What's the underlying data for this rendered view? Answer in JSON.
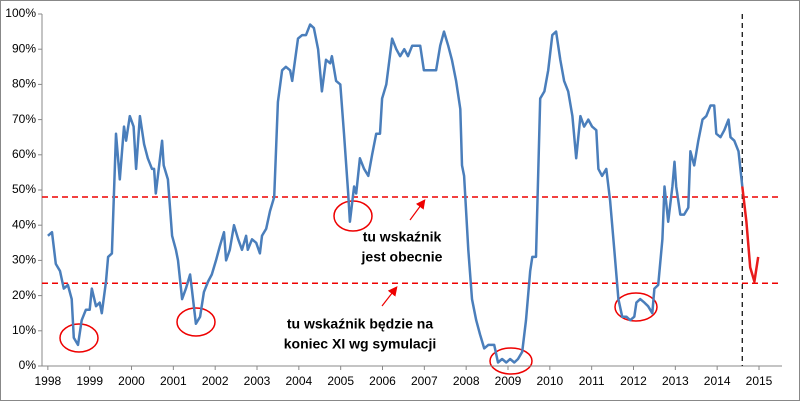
{
  "chart_data": {
    "type": "line",
    "xlim": [
      1997.86,
      2015.55
    ],
    "xticks": [
      1998,
      1999,
      2000,
      2001,
      2002,
      2003,
      2004,
      2005,
      2006,
      2007,
      2008,
      2009,
      2010,
      2011,
      2012,
      2013,
      2014,
      2015
    ],
    "ylim": [
      0,
      100
    ],
    "yticks": [
      {
        "value": 0,
        "label": "0%"
      },
      {
        "value": 10,
        "label": "10%"
      },
      {
        "value": 20,
        "label": "20%"
      },
      {
        "value": 30,
        "label": "30%"
      },
      {
        "value": 40,
        "label": "40%"
      },
      {
        "value": 50,
        "label": "50%"
      },
      {
        "value": 60,
        "label": "60%"
      },
      {
        "value": 70,
        "label": "70%"
      },
      {
        "value": 80,
        "label": "80%"
      },
      {
        "value": 90,
        "label": "90%"
      },
      {
        "value": 100,
        "label": "100%"
      }
    ],
    "grid": false,
    "series": [
      {
        "color": "#4a7ebb",
        "x": [
          1998.0,
          1998.1,
          1998.19,
          1998.29,
          1998.38,
          1998.48,
          1998.57,
          1998.62,
          1998.72,
          1998.81,
          1998.91,
          1999.0,
          1999.05,
          1999.15,
          1999.24,
          1999.29,
          1999.39,
          1999.44,
          1999.53,
          1999.63,
          1999.72,
          1999.82,
          1999.87,
          1999.96,
          2000.05,
          2000.11,
          2000.2,
          2000.3,
          2000.39,
          2000.49,
          2000.54,
          2000.58,
          2000.73,
          2000.77,
          2000.87,
          2000.97,
          2001.06,
          2001.11,
          2001.21,
          2001.3,
          2001.4,
          2001.44,
          2001.54,
          2001.64,
          2001.73,
          2001.83,
          2001.92,
          2002.02,
          2002.11,
          2002.21,
          2002.26,
          2002.35,
          2002.45,
          2002.55,
          2002.64,
          2002.74,
          2002.78,
          2002.88,
          2002.98,
          2003.07,
          2003.12,
          2003.22,
          2003.31,
          2003.41,
          2003.5,
          2003.6,
          2003.69,
          2003.79,
          2003.84,
          2003.98,
          2004.08,
          2004.17,
          2004.27,
          2004.36,
          2004.46,
          2004.55,
          2004.65,
          2004.75,
          2004.79,
          2004.89,
          2004.99,
          2005.08,
          2005.18,
          2005.22,
          2005.32,
          2005.37,
          2005.46,
          2005.56,
          2005.66,
          2005.75,
          2005.85,
          2005.94,
          2005.99,
          2006.09,
          2006.23,
          2006.33,
          2006.42,
          2006.52,
          2006.61,
          2006.71,
          2006.8,
          2006.9,
          2006.99,
          2007.09,
          2007.19,
          2007.28,
          2007.38,
          2007.47,
          2007.57,
          2007.66,
          2007.76,
          2007.86,
          2007.9,
          2007.95,
          2008.05,
          2008.14,
          2008.24,
          2008.33,
          2008.43,
          2008.53,
          2008.67,
          2008.76,
          2008.86,
          2008.96,
          2009.05,
          2009.15,
          2009.24,
          2009.34,
          2009.43,
          2009.53,
          2009.58,
          2009.67,
          2009.77,
          2009.87,
          2009.96,
          2010.06,
          2010.15,
          2010.25,
          2010.34,
          2010.44,
          2010.54,
          2010.63,
          2010.73,
          2010.82,
          2010.92,
          2011.01,
          2011.11,
          2011.16,
          2011.25,
          2011.35,
          2011.44,
          2011.54,
          2011.64,
          2011.73,
          2011.83,
          2011.92,
          2012.02,
          2012.07,
          2012.16,
          2012.26,
          2012.35,
          2012.45,
          2012.5,
          2012.59,
          2012.69,
          2012.74,
          2012.83,
          2012.93,
          2012.98,
          2013.02,
          2013.12,
          2013.21,
          2013.31,
          2013.36,
          2013.45,
          2013.55,
          2013.65,
          2013.74,
          2013.84,
          2013.93,
          2013.98,
          2014.08,
          2014.17,
          2014.27,
          2014.32,
          2014.41,
          2014.51,
          2014.6
        ],
        "values": [
          37,
          38,
          29,
          27,
          22,
          23,
          19,
          8,
          6,
          13,
          16,
          16,
          22,
          17,
          18,
          15,
          24,
          31,
          32,
          66,
          53,
          68,
          64,
          71,
          68,
          56,
          71,
          63,
          59,
          56,
          56,
          49,
          64,
          57,
          53,
          37,
          33,
          30,
          19,
          22,
          26,
          22,
          12,
          14,
          21,
          24,
          26,
          30,
          34,
          38,
          30,
          33,
          40,
          36,
          33,
          37,
          33,
          36,
          35,
          32,
          37,
          39,
          44,
          48,
          75,
          84,
          85,
          84,
          81,
          93,
          94,
          94,
          97,
          96,
          90,
          78,
          87,
          86,
          88,
          81,
          80,
          66,
          49,
          41,
          51,
          49,
          59,
          56,
          54,
          60,
          66,
          66,
          76,
          80,
          93,
          90,
          88,
          90,
          88,
          91,
          91,
          91,
          84,
          84,
          84,
          84,
          91,
          95,
          91,
          87,
          81,
          73,
          57,
          54,
          33,
          19,
          13,
          9,
          5,
          6,
          6,
          1,
          2,
          1,
          2,
          1,
          2,
          4,
          13,
          27,
          31,
          31,
          76,
          78,
          84,
          94,
          95,
          87,
          81,
          78,
          71,
          59,
          71,
          68,
          70,
          68,
          67,
          56,
          54,
          56,
          47,
          33,
          19,
          14,
          14,
          13,
          14,
          18,
          19,
          18,
          17,
          15,
          22,
          23,
          36,
          51,
          41,
          51,
          58,
          51,
          43,
          43,
          45,
          61,
          57,
          64,
          70,
          71,
          74,
          74,
          66,
          65,
          67,
          70,
          65,
          64,
          61,
          51
        ]
      },
      {
        "color": "#e81c1c",
        "x": [
          2014.6,
          2014.7,
          2014.79,
          2014.89,
          2014.98
        ],
        "values": [
          51,
          41,
          28,
          24,
          31
        ]
      }
    ],
    "reference_lines": {
      "y": [
        48,
        23.5
      ],
      "x": [
        2014.6
      ]
    },
    "annotations": [
      [
        "tu wskaźnik",
        "jest obecnie"
      ],
      [
        "tu wskaźnik będzie na",
        "koniec XI wg symulacji"
      ]
    ]
  }
}
